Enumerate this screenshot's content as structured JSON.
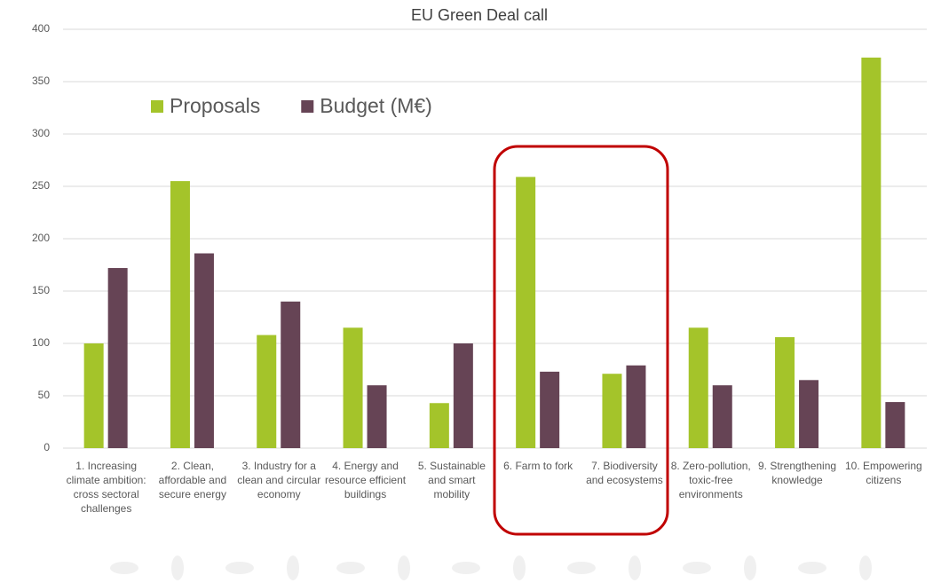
{
  "chart_data": {
    "type": "bar",
    "title": "EU Green Deal call",
    "categories": [
      "1. Increasing climate ambition: cross sectoral challenges",
      "2. Clean, affordable and secure energy",
      "3. Industry for a clean and circular economy",
      "4. Energy and resource efficient buildings",
      "5. Sustainable and smart mobility",
      "6. Farm to fork",
      "7. Biodiversity and ecosystems",
      "8. Zero-pollution, toxic-free environments",
      "9. Strengthening knowledge",
      "10. Empowering citizens"
    ],
    "series": [
      {
        "name": "Proposals",
        "color": "#a4c42a",
        "values": [
          100,
          255,
          108,
          115,
          43,
          259,
          71,
          115,
          106,
          373
        ]
      },
      {
        "name": "Budget (M€)",
        "color": "#664455",
        "values": [
          172,
          186,
          140,
          60,
          100,
          73,
          79,
          60,
          65,
          44
        ]
      }
    ],
    "ylim": [
      0,
      400
    ],
    "yticks": [
      0,
      50,
      100,
      150,
      200,
      250,
      300,
      350,
      400
    ],
    "grid": true,
    "legend": "top-left"
  }
}
